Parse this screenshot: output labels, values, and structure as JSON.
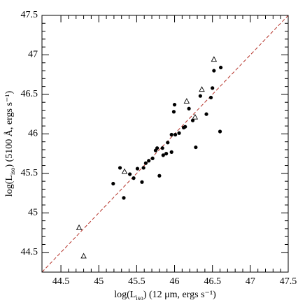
{
  "chart_data": {
    "type": "scatter",
    "xlabel": [
      "log(L",
      "iso",
      ") (12 μm, ergs s⁻¹)"
    ],
    "ylabel": [
      "log(L",
      "iso",
      ") (5100 Å, ergs s⁻¹)"
    ],
    "xlim": [
      44.25,
      47.5
    ],
    "ylim": [
      44.25,
      47.5
    ],
    "xticks": [
      44.5,
      45,
      45.5,
      46,
      46.5,
      47,
      47.5
    ],
    "yticks": [
      44.5,
      45,
      45.5,
      46,
      46.5,
      47,
      47.5
    ],
    "reference_line": {
      "slope": 1,
      "color": "#b5332a"
    },
    "series": [
      {
        "marker": "filled-circle",
        "color": "#000000",
        "x": [
          45.19,
          45.33,
          45.28,
          45.41,
          45.46,
          45.51,
          45.57,
          45.59,
          45.62,
          45.66,
          45.71,
          45.75,
          45.77,
          45.8,
          45.84,
          45.85,
          45.89,
          45.91,
          45.96,
          45.96,
          45.99,
          46.0,
          46.01,
          46.06,
          46.12,
          46.14,
          46.19,
          46.24,
          46.28,
          46.34,
          46.42,
          46.48,
          46.5,
          46.52,
          46.61,
          46.6
        ],
        "values": [
          45.37,
          45.19,
          45.57,
          45.49,
          45.44,
          45.56,
          45.39,
          45.57,
          45.63,
          45.66,
          45.69,
          45.79,
          45.82,
          45.47,
          45.82,
          45.73,
          45.75,
          45.89,
          45.77,
          45.99,
          46.28,
          46.37,
          45.99,
          46.01,
          46.08,
          46.09,
          46.32,
          46.17,
          45.83,
          46.48,
          46.25,
          46.46,
          46.58,
          46.8,
          46.84,
          46.03
        ]
      },
      {
        "marker": "open-triangle",
        "color": "#000000",
        "x": [
          44.74,
          44.8,
          45.34,
          46.16,
          46.27,
          46.36,
          46.52
        ],
        "values": [
          44.81,
          44.45,
          45.52,
          46.41,
          46.21,
          46.56,
          46.94
        ]
      }
    ]
  }
}
